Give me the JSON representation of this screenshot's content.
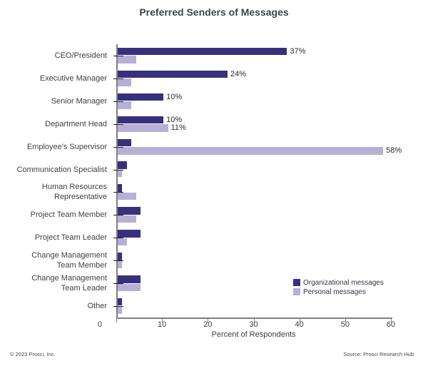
{
  "title": "Preferred Senders of Messages",
  "footer": {
    "left": "© 2023 Prosci, Inc.",
    "right": "Source: Prosci Research Hub"
  },
  "colors": {
    "organizational": "#37307d",
    "personal": "#b6b0d7",
    "axis": "#7f7f7f",
    "text": "#3f3f3f"
  },
  "chart_data": {
    "type": "bar",
    "orientation": "horizontal",
    "title": "Preferred Senders of Messages",
    "xlabel": "Percent of Respondents",
    "ylabel": "",
    "xlim": [
      0,
      60
    ],
    "xticks": [
      0,
      10,
      20,
      30,
      40,
      50,
      60
    ],
    "grid": false,
    "legend_position": "inside lower right",
    "categories": [
      "CEO/President",
      "Executive Manager",
      "Senior Manager",
      "Department Head",
      "Employee's Supervisor",
      "Communication Specialist",
      "Human Resources Representative",
      "Project Team Member",
      "Project Team Leader",
      "Change Management Team Member",
      "Change Management Team Leader",
      "Other"
    ],
    "category_display_lines": [
      [
        "CEO/President"
      ],
      [
        "Executive Manager"
      ],
      [
        "Senior Manager"
      ],
      [
        "Department Head"
      ],
      [
        "Employee's Supervisor"
      ],
      [
        "Communication Specialist"
      ],
      [
        "Human Resources",
        "Representative"
      ],
      [
        "Project Team Member"
      ],
      [
        "Project Team Leader"
      ],
      [
        "Change Management",
        "Team Member"
      ],
      [
        "Change Management",
        "Team Leader"
      ],
      [
        "Other"
      ]
    ],
    "series": [
      {
        "name": "Organizational messages",
        "color": "#37307d",
        "values": [
          37,
          24,
          10,
          10,
          3,
          2,
          1,
          5,
          5,
          1,
          5,
          1
        ],
        "data_labels": [
          "37%",
          "24%",
          "10%",
          "10%",
          "",
          "",
          "",
          "",
          "",
          "",
          "",
          ""
        ]
      },
      {
        "name": "Personal messages",
        "color": "#b6b0d7",
        "values": [
          4,
          3,
          3,
          11,
          58,
          1,
          4,
          4,
          2,
          1,
          5,
          1
        ],
        "data_labels": [
          "",
          "",
          "",
          "11%",
          "58%",
          "",
          "",
          "",
          "",
          "",
          "",
          ""
        ]
      }
    ]
  }
}
